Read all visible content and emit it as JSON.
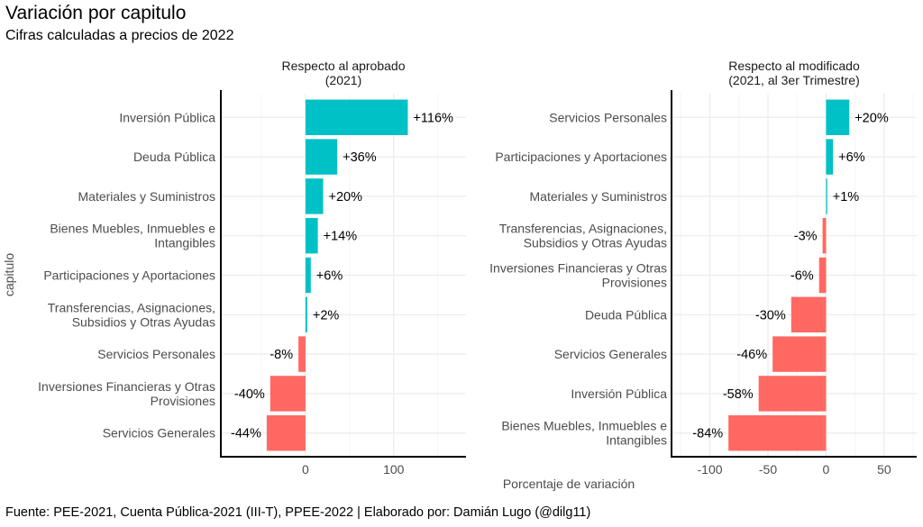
{
  "chart_data": [
    {
      "type": "bar",
      "orientation": "horizontal",
      "title": "Respecto al aprobado",
      "title_line2": "(2021)",
      "xlabel": "Porcentaje de variación",
      "ylabel": "capitulo",
      "xlim": [
        -96,
        182
      ],
      "xticks": [
        0,
        100
      ],
      "grid": true,
      "categories": [
        [
          "Inversión Pública"
        ],
        [
          "Deuda Pública"
        ],
        [
          "Materiales y Suministros"
        ],
        [
          "Bienes Muebles, Inmuebles e",
          "Intangibles"
        ],
        [
          "Participaciones y Aportaciones"
        ],
        [
          "Transferencias, Asignaciones,",
          "Subsidios y Otras Ayudas"
        ],
        [
          "Servicios Personales"
        ],
        [
          "Inversiones Financieras y Otras",
          "Provisiones"
        ],
        [
          "Servicios Generales"
        ]
      ],
      "values": [
        116,
        36,
        20,
        14,
        6,
        2,
        -8,
        -40,
        -44
      ],
      "labels": [
        "+116%",
        "+36%",
        "+20%",
        "+14%",
        "+6%",
        "+2%",
        "-8%",
        "-40%",
        "-44%"
      ]
    },
    {
      "type": "bar",
      "orientation": "horizontal",
      "title": "Respecto al modificado",
      "title_line2": "(2021, al 3er Trimestre)",
      "xlim": [
        -133,
        78
      ],
      "xticks": [
        -100,
        -50,
        0,
        50
      ],
      "grid": true,
      "categories": [
        [
          "Servicios Personales"
        ],
        [
          "Participaciones y Aportaciones"
        ],
        [
          "Materiales y Suministros"
        ],
        [
          "Transferencias, Asignaciones,",
          "Subsidios y Otras Ayudas"
        ],
        [
          "Inversiones Financieras y Otras",
          "Provisiones"
        ],
        [
          "Deuda Pública"
        ],
        [
          "Servicios Generales"
        ],
        [
          "Inversión Pública"
        ],
        [
          "Bienes Muebles, Inmuebles e",
          "Intangibles"
        ]
      ],
      "values": [
        20,
        6,
        1,
        -3,
        -6,
        -30,
        -46,
        -58,
        -84
      ],
      "labels": [
        "+20%",
        "+6%",
        "+1%",
        "-3%",
        "-6%",
        "-30%",
        "-46%",
        "-58%",
        "-84%"
      ]
    }
  ],
  "header": {
    "title": "Variación por capitulo",
    "subtitle": "Cifras calculadas a precios de 2022"
  },
  "caption": "Fuente: PEE-2021, Cuenta Pública-2021 (III-T), PPEE-2022 | Elaborado por: Damián Lugo (@dilg11)",
  "colors": {
    "positive": "#00C1C6",
    "negative": "#FF6961",
    "grid": "#EBEBEB"
  }
}
